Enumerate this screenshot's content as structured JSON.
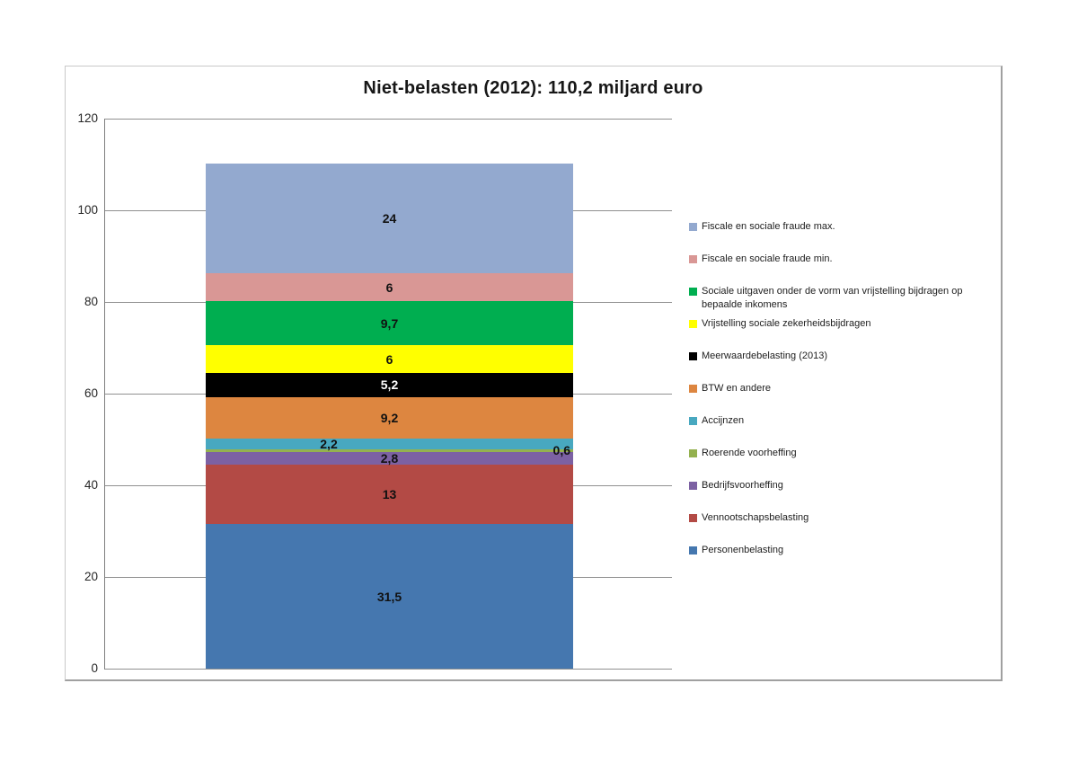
{
  "chart_data": {
    "type": "bar",
    "stacked": true,
    "title": "Niet-belasten (2012): 110,2 miljard euro",
    "total": 110.2,
    "unit": "miljard euro",
    "xlabel": "",
    "ylabel": "",
    "ylim": [
      0,
      120
    ],
    "yticks": [
      0,
      20,
      40,
      60,
      80,
      100,
      120
    ],
    "grid": true,
    "legend_position": "right",
    "segments_bottom_to_top": [
      {
        "name": "Personenbelasting",
        "value": 31.5,
        "label": "31,5",
        "color": "#4577af",
        "label_color": "#111111",
        "label_pos": "center"
      },
      {
        "name": "Vennootschapsbelasting",
        "value": 13,
        "label": "13",
        "color": "#b34a45",
        "label_color": "#111111",
        "label_pos": "center"
      },
      {
        "name": "Bedrijfsvoorheffing",
        "value": 2.8,
        "label": "2,8",
        "color": "#7c61a3",
        "label_color": "#111111",
        "label_pos": "center"
      },
      {
        "name": "Roerende voorheffing",
        "value": 0.6,
        "label": "0,6",
        "color": "#94b14f",
        "label_color": "#111111",
        "label_pos": "right"
      },
      {
        "name": "Accijnzen",
        "value": 2.2,
        "label": "2,2",
        "color": "#48a8c0",
        "label_color": "#111111",
        "label_pos": "left"
      },
      {
        "name": "BTW en andere",
        "value": 9.2,
        "label": "9,2",
        "color": "#dd8640",
        "label_color": "#111111",
        "label_pos": "center"
      },
      {
        "name": "Meerwaardebelasting (2013)",
        "value": 5.2,
        "label": "5,2",
        "color": "#000000",
        "label_color": "#ffffff",
        "label_pos": "center"
      },
      {
        "name": "Vrijstelling sociale zekerheidsbijdragen",
        "value": 6,
        "label": "6",
        "color": "#ffff00",
        "label_color": "#111111",
        "label_pos": "center"
      },
      {
        "name": "Sociale uitgaven onder de vorm van vrijstelling bijdragen op bepaalde inkomens",
        "value": 9.7,
        "label": "9,7",
        "color": "#00ae50",
        "label_color": "#111111",
        "label_pos": "center"
      },
      {
        "name": "Fiscale en sociale fraude min.",
        "value": 6,
        "label": "6",
        "color": "#d99795",
        "label_color": "#111111",
        "label_pos": "center"
      },
      {
        "name": "Fiscale en sociale fraude max.",
        "value": 24,
        "label": "24",
        "color": "#93a9cf",
        "label_color": "#111111",
        "label_pos": "center"
      }
    ]
  }
}
